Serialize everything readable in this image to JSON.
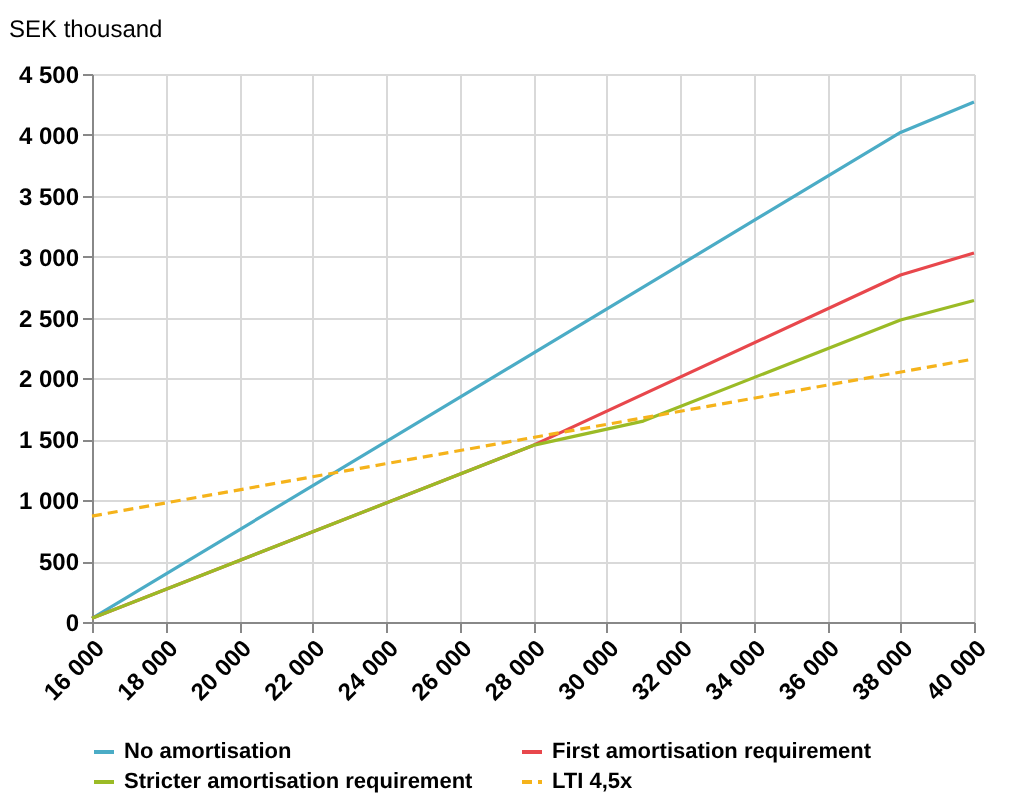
{
  "chart_data": {
    "type": "line",
    "ylabel": "SEK thousand",
    "xlim": [
      16000,
      40000
    ],
    "xticks": [
      {
        "value": 16000,
        "label": "16 000"
      },
      {
        "value": 18000,
        "label": "18 000"
      },
      {
        "value": 20000,
        "label": "20 000"
      },
      {
        "value": 22000,
        "label": "22 000"
      },
      {
        "value": 24000,
        "label": "24 000"
      },
      {
        "value": 26000,
        "label": "26 000"
      },
      {
        "value": 28000,
        "label": "28 000"
      },
      {
        "value": 30000,
        "label": "30 000"
      },
      {
        "value": 32000,
        "label": "32 000"
      },
      {
        "value": 34000,
        "label": "34 000"
      },
      {
        "value": 36000,
        "label": "36 000"
      },
      {
        "value": 38000,
        "label": "38 000"
      },
      {
        "value": 40000,
        "label": "40 000"
      }
    ],
    "ylim": [
      0,
      4500
    ],
    "yticks": [
      0,
      500,
      {
        "value": 1000,
        "label": "1 000"
      },
      {
        "value": 1500,
        "label": "1 500"
      },
      {
        "value": 2000,
        "label": "2 000"
      },
      {
        "value": 2500,
        "label": "2 500"
      },
      {
        "value": 3000,
        "label": "3 000"
      },
      {
        "value": 3500,
        "label": "3 500"
      },
      {
        "value": 4000,
        "label": "4 000"
      },
      {
        "value": 4500,
        "label": "4 500"
      }
    ],
    "grid": true,
    "legend": "bottom",
    "series": [
      {
        "name": "No amortisation",
        "color": "#4bacc6",
        "line_style": "solid",
        "x": [
          16000,
          38000,
          40000
        ],
        "values": [
          30,
          4020,
          4270
        ]
      },
      {
        "name": "First amortisation requirement",
        "color": "#e8474c",
        "line_style": "solid",
        "x": [
          16000,
          28000,
          38000,
          40000
        ],
        "values": [
          30,
          1450,
          2850,
          3030
        ]
      },
      {
        "name": "Stricter amortisation requirement",
        "color": "#9bbb26",
        "line_style": "solid",
        "x": [
          16000,
          28000,
          31000,
          38000,
          40000
        ],
        "values": [
          30,
          1450,
          1650,
          2480,
          2640
        ]
      },
      {
        "name": "LTI 4,5x",
        "color": "#f5b31b",
        "line_style": "dashed",
        "x": [
          16000,
          40000
        ],
        "values": [
          870,
          2160
        ]
      }
    ]
  }
}
